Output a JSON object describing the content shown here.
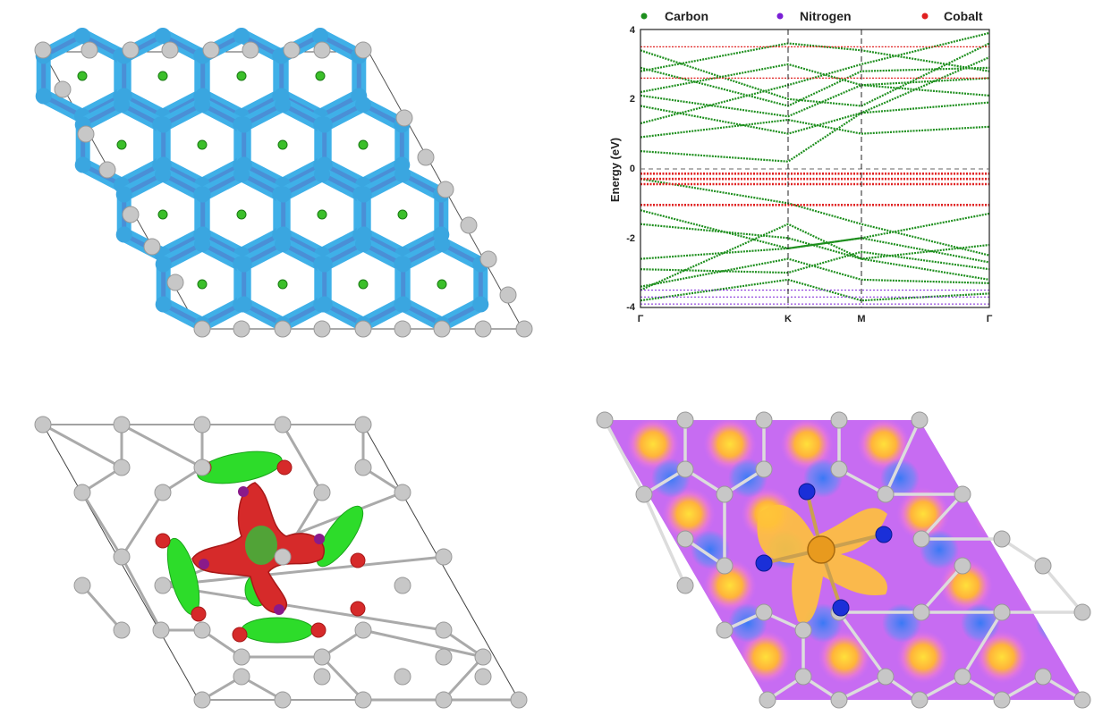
{
  "band_plot": {
    "ylabel": "Energy (eV)",
    "yticks": [
      "4",
      "2",
      "0",
      "-2",
      "-4"
    ],
    "xticks": [
      "Γ",
      "K",
      "M",
      "Γ"
    ],
    "legend": [
      {
        "label": "Carbon",
        "color": "#1e8f1e"
      },
      {
        "label": "Nitrogen",
        "color": "#7a1fd6"
      },
      {
        "label": "Cobalt",
        "color": "#e02020"
      }
    ],
    "ylim": [
      -4,
      4
    ]
  },
  "colors": {
    "charge_cloud": "#3fb0e8",
    "bond_blue": "#4a8fd6",
    "green_atom": "#3bbf2a",
    "red_isosurface": "#d62a2a",
    "green_isosurface": "#2ddc2a",
    "gray_atom": "#c7c7c7",
    "cobalt_atom": "#e89a1e",
    "nitrogen_atom": "#1a2fd8",
    "map_low": "#b05cf0",
    "map_mid": "#5a8df5",
    "map_high": "#ffd43a"
  }
}
